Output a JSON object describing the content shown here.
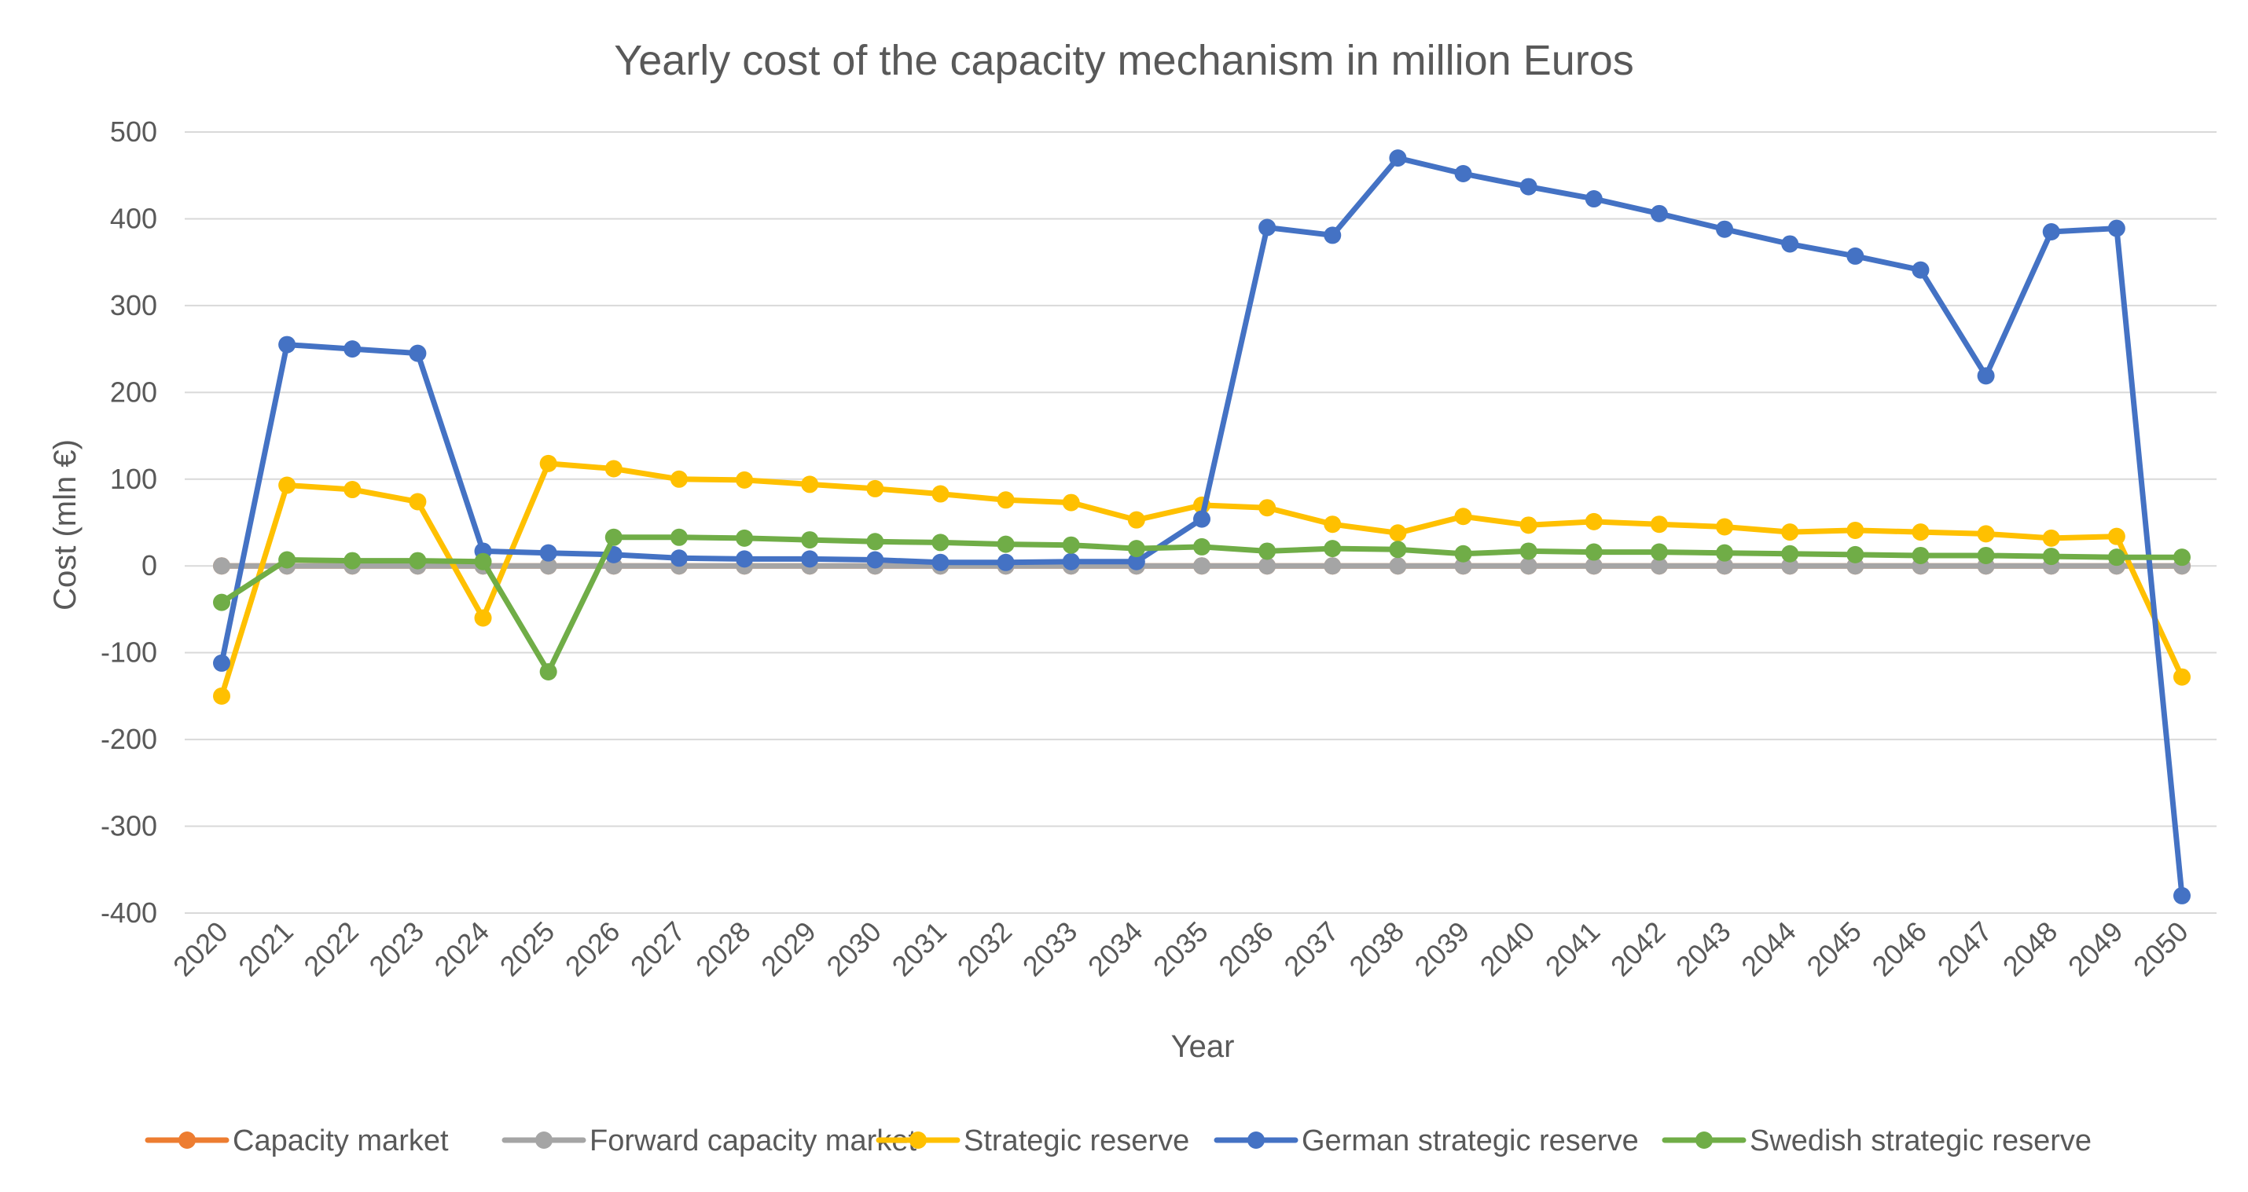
{
  "chart_data": {
    "type": "line",
    "title": "Yearly cost of the capacity mechanism in million Euros",
    "xlabel": "Year",
    "ylabel": "Cost (mln €)",
    "ylim": [
      -400,
      500
    ],
    "yticks": [
      500,
      400,
      300,
      200,
      100,
      0,
      -100,
      -200,
      -300,
      -400
    ],
    "grid": true,
    "legend_position": "bottom",
    "categories": [
      "2020",
      "2021",
      "2022",
      "2023",
      "2024",
      "2025",
      "2026",
      "2027",
      "2028",
      "2029",
      "2030",
      "2031",
      "2032",
      "2033",
      "2034",
      "2035",
      "2036",
      "2037",
      "2038",
      "2039",
      "2040",
      "2041",
      "2042",
      "2043",
      "2044",
      "2045",
      "2046",
      "2047",
      "2048",
      "2049",
      "2050"
    ],
    "series": [
      {
        "name": "Capacity market",
        "color": "#ED7D31",
        "values": [
          0,
          0,
          0,
          0,
          0,
          0,
          0,
          0,
          0,
          0,
          0,
          0,
          0,
          0,
          0,
          0,
          0,
          0,
          0,
          0,
          0,
          0,
          0,
          0,
          0,
          0,
          0,
          0,
          0,
          0,
          0
        ]
      },
      {
        "name": "Forward capacity market",
        "color": "#A5A5A5",
        "values": [
          0,
          0,
          0,
          0,
          0,
          0,
          0,
          0,
          0,
          0,
          0,
          0,
          0,
          0,
          0,
          0,
          0,
          0,
          0,
          0,
          0,
          0,
          0,
          0,
          0,
          0,
          0,
          0,
          0,
          0,
          0
        ]
      },
      {
        "name": "Strategic reserve",
        "color": "#FFC000",
        "values": [
          -150,
          93,
          88,
          74,
          -60,
          118,
          112,
          100,
          99,
          94,
          89,
          83,
          76,
          73,
          53,
          70,
          67,
          48,
          38,
          57,
          47,
          51,
          48,
          45,
          39,
          41,
          39,
          37,
          32,
          34,
          -128
        ]
      },
      {
        "name": "German strategic reserve",
        "color": "#4472C4",
        "values": [
          -112,
          255,
          250,
          245,
          17,
          15,
          13,
          9,
          8,
          8,
          7,
          4,
          4,
          5,
          5,
          54,
          390,
          381,
          470,
          452,
          437,
          423,
          406,
          388,
          371,
          357,
          341,
          219,
          385,
          389,
          -380
        ]
      },
      {
        "name": "Swedish strategic reserve",
        "color": "#70AD47",
        "values": [
          -42,
          7,
          6,
          6,
          5,
          -122,
          33,
          33,
          32,
          30,
          28,
          27,
          25,
          24,
          20,
          22,
          17,
          20,
          19,
          14,
          17,
          16,
          16,
          15,
          14,
          13,
          12,
          12,
          11,
          10,
          10
        ]
      }
    ]
  }
}
